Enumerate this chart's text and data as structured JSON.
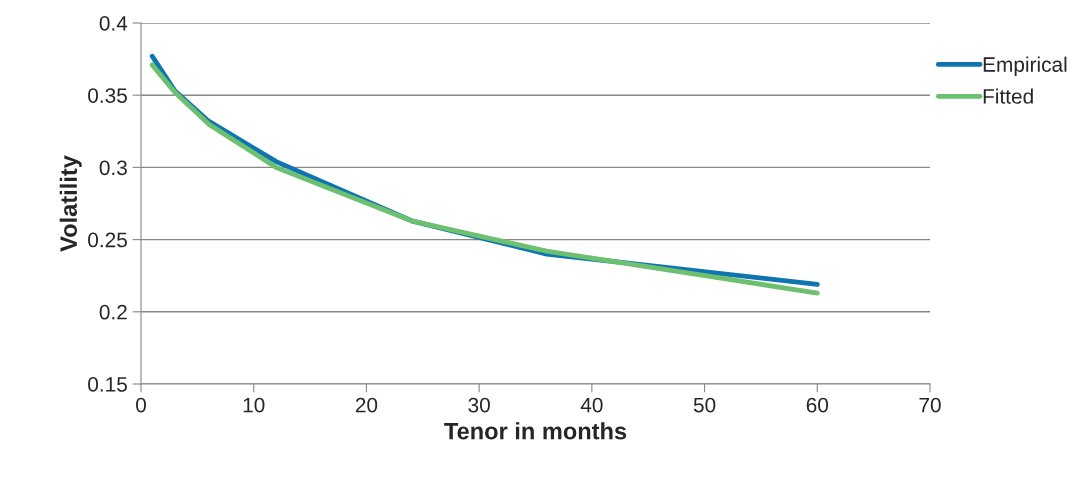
{
  "chart_data": {
    "type": "line",
    "xlabel": "Tenor in months",
    "ylabel": "Volatility",
    "x": [
      1,
      3,
      6,
      12,
      24,
      36,
      60
    ],
    "series": [
      {
        "name": "Empirical",
        "color": "#0f75b0",
        "values": [
          0.377,
          0.353,
          0.332,
          0.304,
          0.263,
          0.24,
          0.219
        ]
      },
      {
        "name": "Fitted",
        "color": "#6cc070",
        "values": [
          0.371,
          0.352,
          0.33,
          0.3,
          0.263,
          0.242,
          0.213
        ]
      }
    ],
    "xlim": [
      0,
      70
    ],
    "xticks": [
      0,
      10,
      20,
      30,
      40,
      50,
      60,
      70
    ],
    "ylim": [
      0.15,
      0.4
    ],
    "yticks": [
      {
        "value": 0.15,
        "label": "0.15"
      },
      {
        "value": 0.2,
        "label": "0.2"
      },
      {
        "value": 0.25,
        "label": "0.25"
      },
      {
        "value": 0.3,
        "label": "0.3"
      },
      {
        "value": 0.35,
        "label": "0.35"
      },
      {
        "value": 0.4,
        "label": "0.4"
      }
    ],
    "grid": "y",
    "legend": "right",
    "marker": "none",
    "line_style": "solid"
  }
}
